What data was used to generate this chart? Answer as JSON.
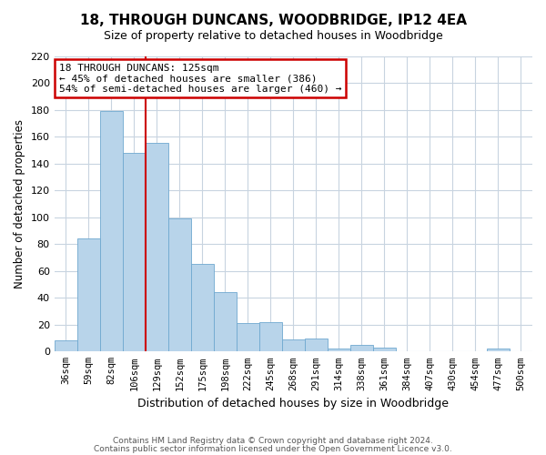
{
  "title": "18, THROUGH DUNCANS, WOODBRIDGE, IP12 4EA",
  "subtitle": "Size of property relative to detached houses in Woodbridge",
  "xlabel": "Distribution of detached houses by size in Woodbridge",
  "ylabel": "Number of detached properties",
  "categories": [
    "36sqm",
    "59sqm",
    "82sqm",
    "106sqm",
    "129sqm",
    "152sqm",
    "175sqm",
    "198sqm",
    "222sqm",
    "245sqm",
    "268sqm",
    "291sqm",
    "314sqm",
    "338sqm",
    "361sqm",
    "384sqm",
    "407sqm",
    "430sqm",
    "454sqm",
    "477sqm",
    "500sqm"
  ],
  "values": [
    8,
    84,
    179,
    148,
    155,
    99,
    65,
    44,
    21,
    22,
    9,
    10,
    2,
    5,
    3,
    0,
    0,
    0,
    0,
    2,
    0
  ],
  "bar_color": "#b8d4ea",
  "bar_edge_color": "#6fa8d0",
  "vline_color": "#cc0000",
  "vline_position": 3.5,
  "ylim": [
    0,
    220
  ],
  "yticks": [
    0,
    20,
    40,
    60,
    80,
    100,
    120,
    140,
    160,
    180,
    200,
    220
  ],
  "annotation_line1": "18 THROUGH DUNCANS: 125sqm",
  "annotation_line2": "← 45% of detached houses are smaller (386)",
  "annotation_line3": "54% of semi-detached houses are larger (460) →",
  "annotation_box_color": "#ffffff",
  "annotation_box_edge": "#cc0000",
  "footer1": "Contains HM Land Registry data © Crown copyright and database right 2024.",
  "footer2": "Contains public sector information licensed under the Open Government Licence v3.0.",
  "bg_color": "#ffffff",
  "grid_color": "#c8d4e0"
}
